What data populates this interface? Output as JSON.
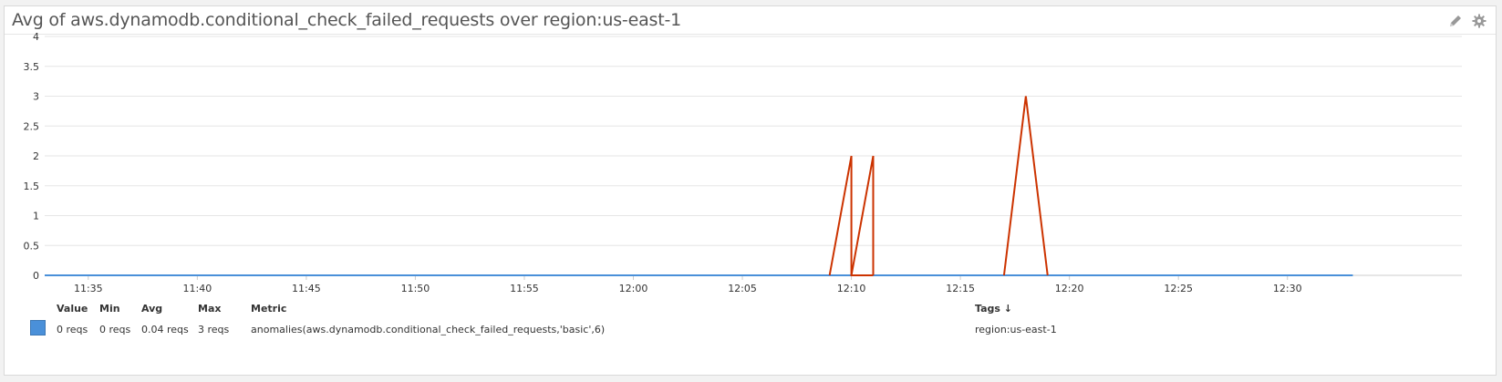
{
  "widget": {
    "title": "Avg of aws.dynamodb.conditional_check_failed_requests over region:us-east-1",
    "edit_icon": "pencil-icon",
    "settings_icon": "gear-icon"
  },
  "colors": {
    "baseline": "#4a90d9",
    "anomaly": "#cc3300",
    "grid": "#e6e6e6"
  },
  "chart_data": {
    "type": "line",
    "title": "Avg of aws.dynamodb.conditional_check_failed_requests over region:us-east-1",
    "xlabel": "",
    "ylabel": "",
    "ylim": [
      0,
      4
    ],
    "xlim": [
      "11:33",
      "12:38"
    ],
    "y_ticks": [
      "0",
      "0.5",
      "1",
      "1.5",
      "2",
      "2.5",
      "3",
      "3.5",
      "4"
    ],
    "x_ticks": [
      "11:35",
      "11:40",
      "11:45",
      "11:50",
      "11:55",
      "12:00",
      "12:05",
      "12:10",
      "12:15",
      "12:20",
      "12:25",
      "12:30"
    ],
    "grid": true,
    "series": [
      {
        "name": "region:us-east-1",
        "baseline": {
          "x": [
            "11:33",
            "12:33"
          ],
          "y": [
            0,
            0
          ]
        },
        "anomalies": [
          {
            "x": [
              "12:09",
              "12:10",
              "12:10",
              "12:11"
            ],
            "y": [
              0,
              2,
              0,
              0
            ]
          },
          {
            "x": [
              "12:10",
              "12:11",
              "12:11"
            ],
            "y": [
              0,
              2,
              0
            ]
          },
          {
            "x": [
              "12:17",
              "12:18",
              "12:19"
            ],
            "y": [
              0,
              3,
              0
            ]
          }
        ]
      }
    ]
  },
  "legend": {
    "headers": {
      "value": "Value",
      "min": "Min",
      "avg": "Avg",
      "max": "Max",
      "metric": "Metric",
      "tags": "Tags ↓"
    },
    "row": {
      "value": "0 reqs",
      "min": "0 reqs",
      "avg": "0.04 reqs",
      "max": "3 reqs",
      "metric": "anomalies(aws.dynamodb.conditional_check_failed_requests,'basic',6)",
      "tags": "region:us-east-1"
    }
  }
}
